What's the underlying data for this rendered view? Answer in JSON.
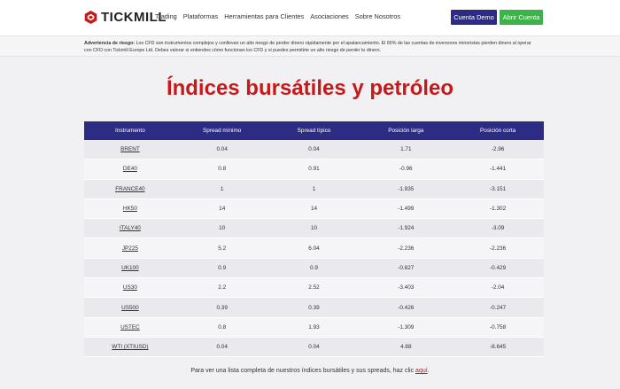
{
  "header": {
    "logo_text": "TICKMILL",
    "nav": [
      "Trading",
      "Plataformas",
      "Herramientas para Clientes",
      "Asociaciones",
      "Sobre Nosotros"
    ],
    "demo_button": "Cuenta Demo",
    "open_button": "Abrir Cuenta"
  },
  "risk": {
    "label": "Advertencia de riesgo:",
    "text": " Los CFD son instrumentos complejos y conllevan un alto riesgo de perder dinero rápidamente por el apalancamiento. El 65% de las cuentas de inversores minoristas pierden dinero al operar con CFD con Tickmill Europe Ltd. Debes valorar si entiendes cómo funcionan los CFD y si puedes permitirte un alto riesgo de perder tu dinero."
  },
  "title": "Índices bursátiles y petróleo",
  "table": {
    "headers": [
      "Instrumento",
      "Spread mínimo",
      "Spread típico",
      "Posición larga",
      "Posición corta"
    ],
    "rows": [
      [
        "BRENT",
        "0.04",
        "0.04",
        "1.71",
        "-2.96"
      ],
      [
        "DE40",
        "0.8",
        "0.91",
        "-0.96",
        "-1.441"
      ],
      [
        "FRANCE40",
        "1",
        "1",
        "-1.935",
        "-3.151"
      ],
      [
        "HK50",
        "14",
        "14",
        "-1.499",
        "-1.302"
      ],
      [
        "ITALY40",
        "10",
        "10",
        "-1.924",
        "-3.09"
      ],
      [
        "JP225",
        "5.2",
        "6.04",
        "-2.236",
        "-2.236"
      ],
      [
        "UK100",
        "0.9",
        "0.9",
        "-0.827",
        "-0.429"
      ],
      [
        "US30",
        "2.2",
        "2.52",
        "-3.403",
        "-2.04"
      ],
      [
        "US500",
        "0.39",
        "0.39",
        "-0.426",
        "-0.247"
      ],
      [
        "USTEC",
        "0.8",
        "1.93",
        "-1.309",
        "-0.758"
      ],
      [
        "WTI (XTIUSD)",
        "0.04",
        "0.04",
        "4.88",
        "-8.645"
      ]
    ]
  },
  "footnote": {
    "text": "Para ver una lista completa de nuestros índices bursátiles y sus spreads, haz clic ",
    "link": "aquí",
    "end": "."
  },
  "colors": {
    "brand_navy": "#2d2c85",
    "accent_red": "#c41a1a",
    "green": "#3db24b"
  }
}
